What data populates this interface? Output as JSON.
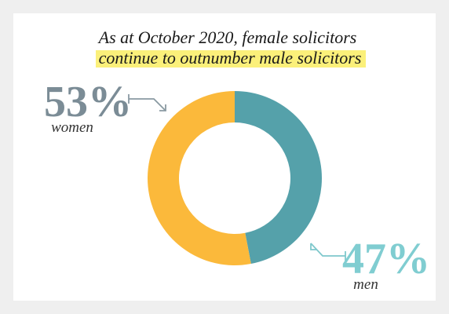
{
  "chart_data": {
    "type": "donut",
    "title": "As at October 2020, female solicitors",
    "subtitle": "continue to outnumber male solicitors",
    "categories": [
      "men",
      "women"
    ],
    "values": [
      47,
      53
    ],
    "value_labels": [
      "47%",
      "53%"
    ],
    "colors": [
      "#55a1aa",
      "#fbb93b"
    ],
    "label_colors": [
      "#80cdd1",
      "#7b8c96"
    ]
  }
}
